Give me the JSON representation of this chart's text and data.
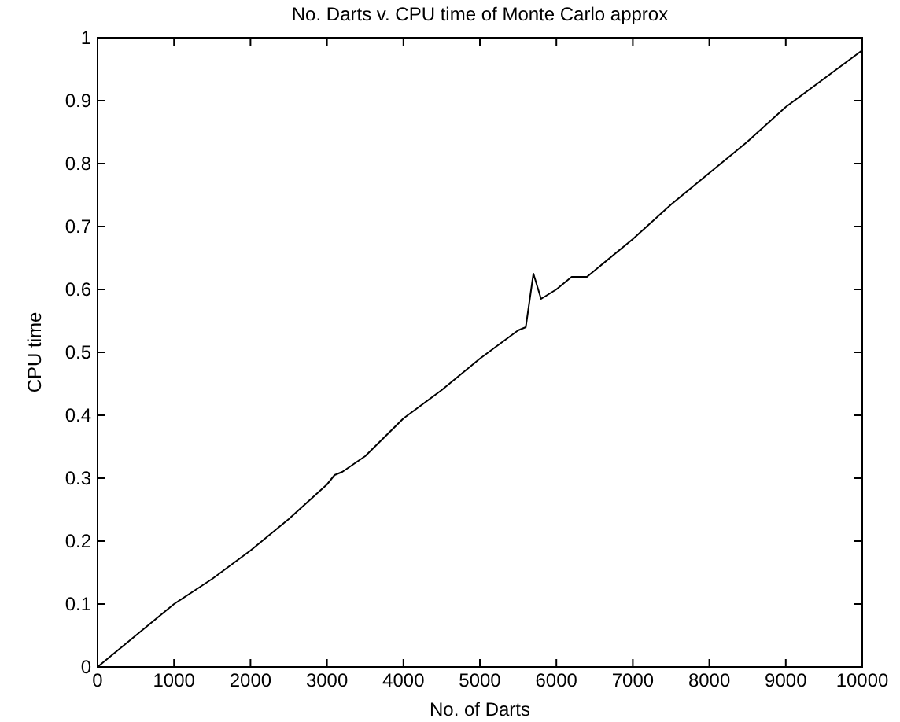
{
  "chart_data": {
    "type": "line",
    "title": "No. Darts v. CPU time of Monte Carlo approx",
    "xlabel": "No. of Darts",
    "ylabel": "CPU time",
    "x": [
      0,
      500,
      1000,
      1500,
      2000,
      2500,
      3000,
      3100,
      3200,
      3500,
      4000,
      4500,
      5000,
      5500,
      5600,
      5700,
      5800,
      6000,
      6200,
      6400,
      6500,
      7000,
      7500,
      8000,
      8500,
      9000,
      9500,
      10000
    ],
    "series": [
      {
        "color": "#000000",
        "values": [
          0,
          0.05,
          0.1,
          0.14,
          0.185,
          0.235,
          0.29,
          0.305,
          0.31,
          0.335,
          0.395,
          0.44,
          0.49,
          0.535,
          0.54,
          0.625,
          0.585,
          0.6,
          0.62,
          0.62,
          0.63,
          0.68,
          0.735,
          0.785,
          0.835,
          0.89,
          0.935,
          0.98
        ]
      }
    ],
    "xlim": [
      0,
      10000
    ],
    "xticks": [
      0,
      1000,
      2000,
      3000,
      4000,
      5000,
      6000,
      7000,
      8000,
      9000,
      10000
    ],
    "ylim": [
      0,
      1
    ],
    "yticks": [
      0,
      0.1,
      0.2,
      0.3,
      0.4,
      0.5,
      0.6,
      0.7,
      0.8,
      0.9,
      1
    ],
    "grid": false,
    "marker": "none",
    "line_style": "solid"
  }
}
